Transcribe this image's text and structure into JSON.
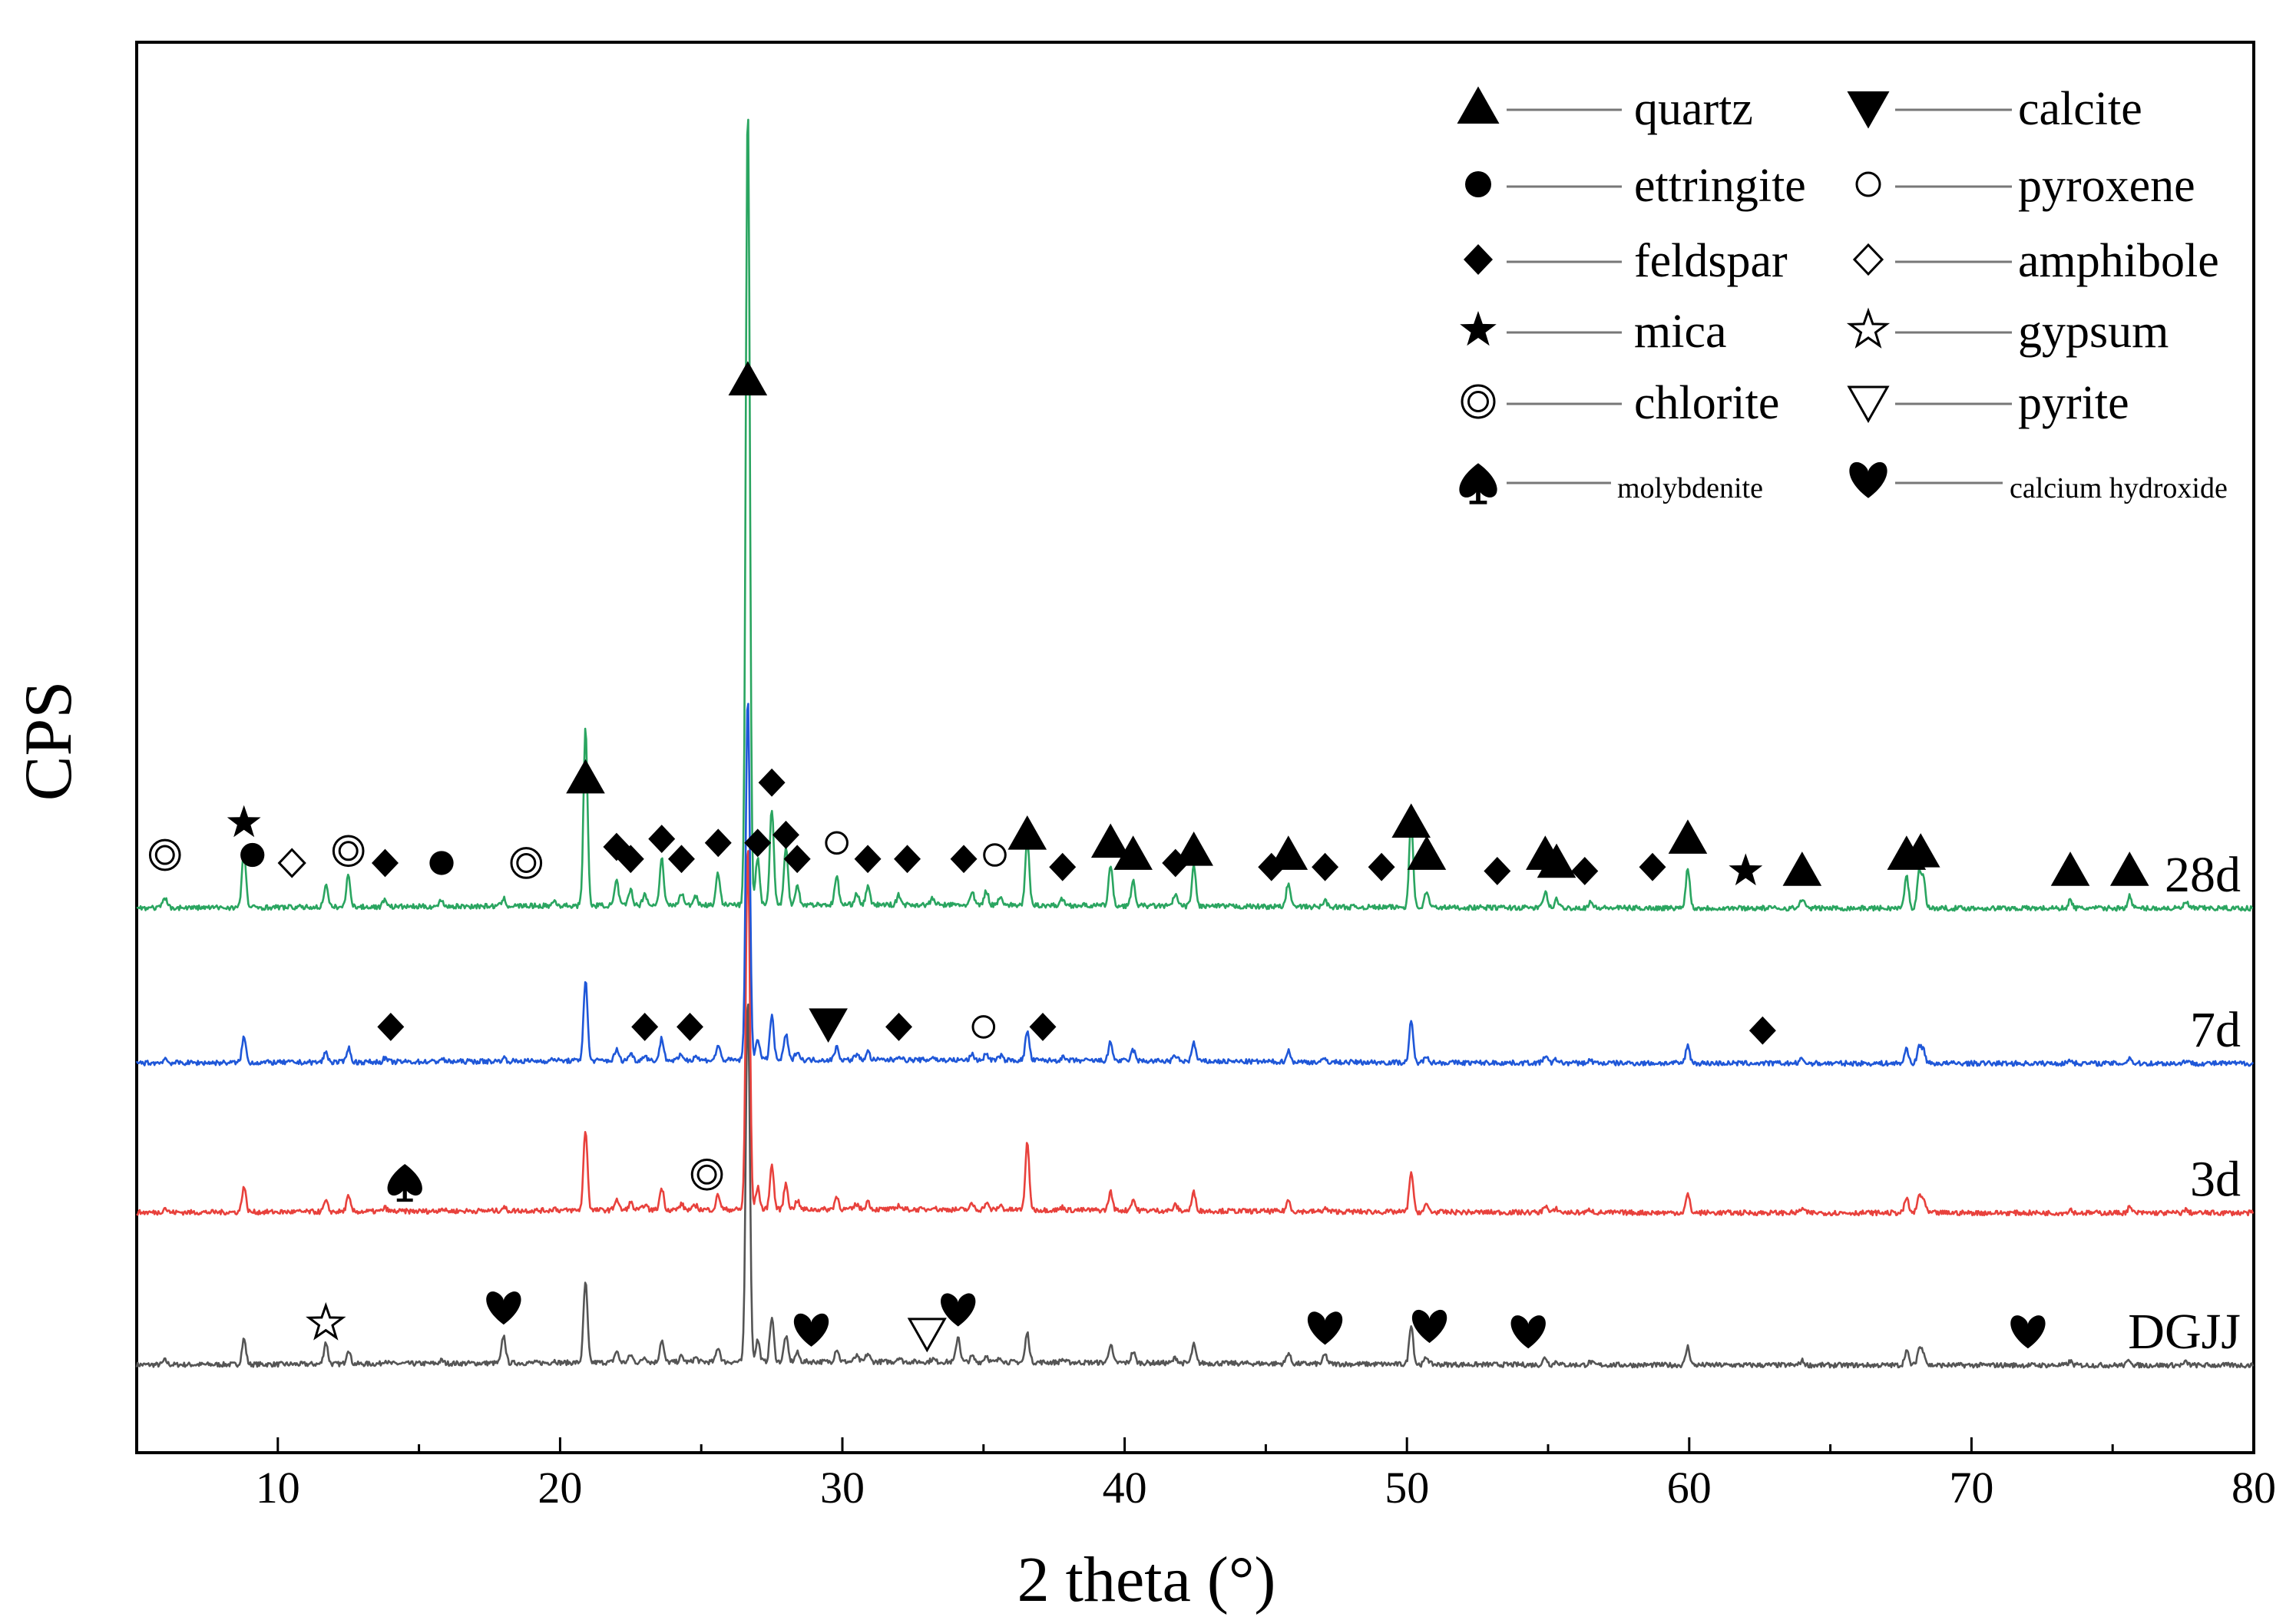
{
  "chart_data": {
    "type": "line",
    "title": "",
    "xlabel": "2 theta (°)",
    "ylabel": "CPS",
    "xlim": [
      5,
      80
    ],
    "xticks": [
      10,
      20,
      30,
      40,
      50,
      60,
      70,
      80
    ],
    "ylim": [
      0,
      100
    ],
    "grid": false,
    "peaks": [
      {
        "x": 6.0,
        "h": 1.2
      },
      {
        "x": 8.8,
        "h": 7.0
      },
      {
        "x": 11.7,
        "h": 2.8
      },
      {
        "x": 12.5,
        "h": 4.0
      },
      {
        "x": 13.8,
        "h": 1.0
      },
      {
        "x": 15.8,
        "h": 0.8
      },
      {
        "x": 18.0,
        "h": 0.9
      },
      {
        "x": 19.8,
        "h": 0.6
      },
      {
        "x": 20.9,
        "h": 22.0
      },
      {
        "x": 22.0,
        "h": 3.0
      },
      {
        "x": 22.5,
        "h": 2.0
      },
      {
        "x": 23.0,
        "h": 1.5
      },
      {
        "x": 23.6,
        "h": 6.0
      },
      {
        "x": 24.3,
        "h": 1.5
      },
      {
        "x": 24.8,
        "h": 1.2
      },
      {
        "x": 25.6,
        "h": 4.0
      },
      {
        "x": 26.65,
        "h": 100.0
      },
      {
        "x": 27.0,
        "h": 6.0
      },
      {
        "x": 27.5,
        "h": 12.0
      },
      {
        "x": 28.0,
        "h": 7.0
      },
      {
        "x": 28.4,
        "h": 2.5
      },
      {
        "x": 29.8,
        "h": 3.5
      },
      {
        "x": 30.5,
        "h": 1.5
      },
      {
        "x": 30.9,
        "h": 2.2
      },
      {
        "x": 32.0,
        "h": 1.2
      },
      {
        "x": 33.2,
        "h": 0.8
      },
      {
        "x": 34.6,
        "h": 1.5
      },
      {
        "x": 35.1,
        "h": 1.8
      },
      {
        "x": 35.6,
        "h": 1.2
      },
      {
        "x": 36.55,
        "h": 8.0
      },
      {
        "x": 37.8,
        "h": 0.8
      },
      {
        "x": 39.5,
        "h": 5.0
      },
      {
        "x": 40.3,
        "h": 3.0
      },
      {
        "x": 41.8,
        "h": 1.5
      },
      {
        "x": 42.45,
        "h": 5.0
      },
      {
        "x": 45.8,
        "h": 3.0
      },
      {
        "x": 47.1,
        "h": 0.8
      },
      {
        "x": 50.15,
        "h": 11.0
      },
      {
        "x": 50.7,
        "h": 2.0
      },
      {
        "x": 54.9,
        "h": 2.0
      },
      {
        "x": 55.3,
        "h": 1.0
      },
      {
        "x": 56.5,
        "h": 0.8
      },
      {
        "x": 59.95,
        "h": 5.0
      },
      {
        "x": 64.0,
        "h": 1.2
      },
      {
        "x": 67.7,
        "h": 4.0
      },
      {
        "x": 68.15,
        "h": 4.5
      },
      {
        "x": 68.3,
        "h": 3.5
      },
      {
        "x": 73.5,
        "h": 1.0
      },
      {
        "x": 75.6,
        "h": 1.5
      },
      {
        "x": 77.6,
        "h": 0.8
      }
    ],
    "series": [
      {
        "name": "DGJJ",
        "color": "#555555",
        "baseline": 6.2,
        "scale": 0.26,
        "extra_peaks": [
          {
            "x": 11.7,
            "h": 6.0
          },
          {
            "x": 18.0,
            "h": 7.5
          },
          {
            "x": 34.1,
            "h": 7.0
          },
          {
            "x": 47.1,
            "h": 2.5
          }
        ]
      },
      {
        "name": "3d",
        "color": "#e8413c",
        "baseline": 17.0,
        "scale": 0.26,
        "extra_peaks": [
          {
            "x": 36.55,
            "h": 18.0
          }
        ]
      },
      {
        "name": "7d",
        "color": "#1f57d8",
        "baseline": 27.6,
        "scale": 0.26,
        "extra_peaks": []
      },
      {
        "name": "28d",
        "color": "#2aa560",
        "baseline": 38.6,
        "scale": 0.57,
        "extra_peaks": []
      }
    ],
    "legend_placement": "top-right",
    "legend": [
      {
        "name": "quartz",
        "symbol": "triangle-up"
      },
      {
        "name": "calcite",
        "symbol": "triangle-down"
      },
      {
        "name": "ettringite",
        "symbol": "circle-filled"
      },
      {
        "name": "pyroxene",
        "symbol": "circle-open"
      },
      {
        "name": "feldspar",
        "symbol": "diamond-filled"
      },
      {
        "name": "amphibole",
        "symbol": "diamond-open"
      },
      {
        "name": "mica",
        "symbol": "star-filled"
      },
      {
        "name": "gypsum",
        "symbol": "star-open"
      },
      {
        "name": "chlorite",
        "symbol": "double-circle"
      },
      {
        "name": "pyrite",
        "symbol": "triangle-down-open"
      },
      {
        "name": "molybdenite",
        "symbol": "spade"
      },
      {
        "name": "calcium hydroxide",
        "symbol": "heart"
      }
    ],
    "annotations": [
      {
        "series": "28d",
        "markers": [
          {
            "symbol": "double-circle",
            "x": 6.0,
            "h": 3.0
          },
          {
            "symbol": "star-filled",
            "x": 8.8,
            "h": 7.0
          },
          {
            "symbol": "circle-filled",
            "x": 9.1,
            "h": 3.0
          },
          {
            "symbol": "diamond-open",
            "x": 10.5,
            "h": 2.0
          },
          {
            "symbol": "double-circle",
            "x": 12.5,
            "h": 3.5
          },
          {
            "symbol": "diamond-filled",
            "x": 13.8,
            "h": 2.0
          },
          {
            "symbol": "circle-filled",
            "x": 15.8,
            "h": 2.0
          },
          {
            "symbol": "double-circle",
            "x": 18.8,
            "h": 2.0
          },
          {
            "symbol": "triangle-up",
            "x": 20.9,
            "h": 12.5
          },
          {
            "symbol": "diamond-filled",
            "x": 22.0,
            "h": 4.0
          },
          {
            "symbol": "diamond-filled",
            "x": 22.5,
            "h": 2.5
          },
          {
            "symbol": "diamond-filled",
            "x": 23.6,
            "h": 5.0
          },
          {
            "symbol": "diamond-filled",
            "x": 24.3,
            "h": 2.5
          },
          {
            "symbol": "diamond-filled",
            "x": 25.6,
            "h": 4.5
          },
          {
            "symbol": "triangle-up",
            "x": 26.65,
            "h": 62.0
          },
          {
            "symbol": "diamond-filled",
            "x": 27.0,
            "h": 4.5
          },
          {
            "symbol": "diamond-filled",
            "x": 27.5,
            "h": 12.0
          },
          {
            "symbol": "diamond-filled",
            "x": 28.0,
            "h": 5.5
          },
          {
            "symbol": "diamond-filled",
            "x": 28.4,
            "h": 2.5
          },
          {
            "symbol": "circle-open",
            "x": 29.8,
            "h": 4.5
          },
          {
            "symbol": "diamond-filled",
            "x": 30.9,
            "h": 2.5
          },
          {
            "symbol": "diamond-filled",
            "x": 32.3,
            "h": 2.5
          },
          {
            "symbol": "diamond-filled",
            "x": 34.3,
            "h": 2.5
          },
          {
            "symbol": "circle-open",
            "x": 35.4,
            "h": 3.0
          },
          {
            "symbol": "triangle-up",
            "x": 36.55,
            "h": 5.5
          },
          {
            "symbol": "diamond-filled",
            "x": 37.8,
            "h": 1.5
          },
          {
            "symbol": "triangle-up",
            "x": 39.5,
            "h": 4.5
          },
          {
            "symbol": "triangle-up",
            "x": 40.3,
            "h": 3.0
          },
          {
            "symbol": "diamond-filled",
            "x": 41.8,
            "h": 2.0
          },
          {
            "symbol": "triangle-up",
            "x": 42.45,
            "h": 3.5
          },
          {
            "symbol": "diamond-filled",
            "x": 45.2,
            "h": 1.5
          },
          {
            "symbol": "triangle-up",
            "x": 45.8,
            "h": 3.0
          },
          {
            "symbol": "diamond-filled",
            "x": 47.1,
            "h": 1.5
          },
          {
            "symbol": "diamond-filled",
            "x": 49.1,
            "h": 1.5
          },
          {
            "symbol": "triangle-up",
            "x": 50.15,
            "h": 7.0
          },
          {
            "symbol": "triangle-up",
            "x": 50.7,
            "h": 3.0
          },
          {
            "symbol": "diamond-filled",
            "x": 53.2,
            "h": 1.0
          },
          {
            "symbol": "triangle-up",
            "x": 54.9,
            "h": 3.0
          },
          {
            "symbol": "triangle-up",
            "x": 55.3,
            "h": 2.0
          },
          {
            "symbol": "diamond-filled",
            "x": 56.3,
            "h": 1.0
          },
          {
            "symbol": "diamond-filled",
            "x": 58.7,
            "h": 1.5
          },
          {
            "symbol": "triangle-up",
            "x": 59.95,
            "h": 5.0
          },
          {
            "symbol": "star-filled",
            "x": 62.0,
            "h": 1.0
          },
          {
            "symbol": "triangle-up",
            "x": 64.0,
            "h": 1.0
          },
          {
            "symbol": "triangle-up",
            "x": 67.7,
            "h": 3.0
          },
          {
            "symbol": "triangle-up",
            "x": 68.2,
            "h": 3.3
          },
          {
            "symbol": "triangle-up",
            "x": 73.5,
            "h": 1.0
          },
          {
            "symbol": "triangle-up",
            "x": 75.6,
            "h": 1.0
          }
        ]
      },
      {
        "series": "7d",
        "markers": [
          {
            "symbol": "diamond-filled",
            "x": 14.0,
            "h": 2.0
          },
          {
            "symbol": "diamond-filled",
            "x": 23.0,
            "h": 2.0
          },
          {
            "symbol": "diamond-filled",
            "x": 24.6,
            "h": 2.0
          },
          {
            "symbol": "triangle-down",
            "x": 29.5,
            "h": 3.0
          },
          {
            "symbol": "diamond-filled",
            "x": 32.0,
            "h": 2.0
          },
          {
            "symbol": "circle-open",
            "x": 35.0,
            "h": 2.0
          },
          {
            "symbol": "diamond-filled",
            "x": 37.1,
            "h": 2.0
          },
          {
            "symbol": "diamond-filled",
            "x": 62.6,
            "h": 1.0
          }
        ]
      },
      {
        "series": "3d",
        "markers": [
          {
            "symbol": "spade",
            "x": 14.5,
            "h": 1.0
          },
          {
            "symbol": "double-circle",
            "x": 25.2,
            "h": 2.5
          }
        ]
      },
      {
        "series": "DGJJ",
        "markers": [
          {
            "symbol": "star-open",
            "x": 11.7,
            "h": 3.5
          },
          {
            "symbol": "heart",
            "x": 18.0,
            "h": 7.5
          },
          {
            "symbol": "heart",
            "x": 28.9,
            "h": 1.5
          },
          {
            "symbol": "triangle-down-open",
            "x": 33.0,
            "h": 1.0
          },
          {
            "symbol": "heart",
            "x": 34.1,
            "h": 7.0
          },
          {
            "symbol": "heart",
            "x": 47.1,
            "h": 2.0
          },
          {
            "symbol": "heart",
            "x": 50.8,
            "h": 2.5
          },
          {
            "symbol": "heart",
            "x": 54.3,
            "h": 1.0
          },
          {
            "symbol": "heart",
            "x": 72.0,
            "h": 1.0
          }
        ]
      }
    ]
  }
}
